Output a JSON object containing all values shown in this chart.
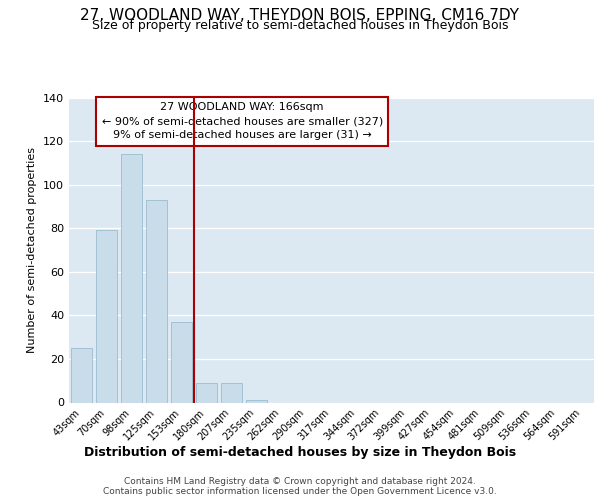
{
  "title": "27, WOODLAND WAY, THEYDON BOIS, EPPING, CM16 7DY",
  "subtitle": "Size of property relative to semi-detached houses in Theydon Bois",
  "xlabel": "Distribution of semi-detached houses by size in Theydon Bois",
  "ylabel": "Number of semi-detached properties",
  "footer1": "Contains HM Land Registry data © Crown copyright and database right 2024.",
  "footer2": "Contains public sector information licensed under the Open Government Licence v3.0.",
  "annotation_line1": "27 WOODLAND WAY: 166sqm",
  "annotation_line2": "← 90% of semi-detached houses are smaller (327)",
  "annotation_line3": "9% of semi-detached houses are larger (31) →",
  "bar_color": "#c8dcea",
  "bar_edge_color": "#9bbcce",
  "highlight_color": "#aa0000",
  "bg_color": "#dce9f2",
  "categories": [
    "43sqm",
    "70sqm",
    "98sqm",
    "125sqm",
    "153sqm",
    "180sqm",
    "207sqm",
    "235sqm",
    "262sqm",
    "290sqm",
    "317sqm",
    "344sqm",
    "372sqm",
    "399sqm",
    "427sqm",
    "454sqm",
    "481sqm",
    "509sqm",
    "536sqm",
    "564sqm",
    "591sqm"
  ],
  "values": [
    25,
    79,
    114,
    93,
    37,
    9,
    9,
    1,
    0,
    0,
    0,
    0,
    0,
    0,
    0,
    0,
    0,
    0,
    0,
    0,
    0
  ],
  "ylim": [
    0,
    140
  ],
  "yticks": [
    0,
    20,
    40,
    60,
    80,
    100,
    120,
    140
  ],
  "red_line_x": 4.5
}
